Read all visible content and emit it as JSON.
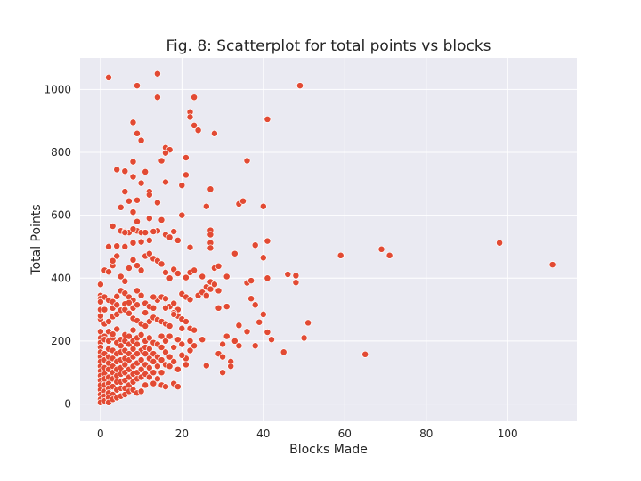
{
  "chart_data": {
    "type": "scatter",
    "title": "Fig. 8: Scatterplot for total points vs blocks",
    "xlabel": "Blocks Made",
    "ylabel": "Total Points",
    "xlim": [
      -5,
      117
    ],
    "ylim": [
      -55,
      1100
    ],
    "xticks": [
      0,
      20,
      40,
      60,
      80,
      100
    ],
    "yticks": [
      0,
      200,
      400,
      600,
      800,
      1000
    ],
    "grid": true,
    "colors": {
      "background": "#EAEAF2",
      "grid": "#FFFFFF",
      "point": "#E24A33",
      "point_edge": "#FFFFFF"
    },
    "points": [
      [
        2,
        1038
      ],
      [
        9,
        1012
      ],
      [
        14,
        1050
      ],
      [
        14,
        975
      ],
      [
        49,
        1012
      ],
      [
        23,
        975
      ],
      [
        22,
        928
      ],
      [
        22,
        912
      ],
      [
        23,
        885
      ],
      [
        24,
        870
      ],
      [
        28,
        860
      ],
      [
        41,
        905
      ],
      [
        8,
        895
      ],
      [
        9,
        860
      ],
      [
        10,
        838
      ],
      [
        16,
        815
      ],
      [
        17,
        808
      ],
      [
        16,
        798
      ],
      [
        15,
        773
      ],
      [
        21,
        783
      ],
      [
        36,
        773
      ],
      [
        4,
        745
      ],
      [
        6,
        740
      ],
      [
        8,
        770
      ],
      [
        11,
        738
      ],
      [
        21,
        728
      ],
      [
        16,
        705
      ],
      [
        20,
        695
      ],
      [
        10,
        702
      ],
      [
        8,
        722
      ],
      [
        6,
        675
      ],
      [
        12,
        675
      ],
      [
        12,
        665
      ],
      [
        27,
        683
      ],
      [
        9,
        648
      ],
      [
        5,
        625
      ],
      [
        7,
        645
      ],
      [
        14,
        640
      ],
      [
        26,
        628
      ],
      [
        34,
        636
      ],
      [
        35,
        645
      ],
      [
        40,
        628
      ],
      [
        8,
        610
      ],
      [
        9,
        580
      ],
      [
        3,
        565
      ],
      [
        5,
        550
      ],
      [
        6,
        548
      ],
      [
        7,
        545
      ],
      [
        9,
        550
      ],
      [
        10,
        545
      ],
      [
        14,
        550
      ],
      [
        16,
        538
      ],
      [
        18,
        548
      ],
      [
        20,
        600
      ],
      [
        15,
        585
      ],
      [
        12,
        590
      ],
      [
        4,
        502
      ],
      [
        2,
        500
      ],
      [
        6,
        500
      ],
      [
        8,
        512
      ],
      [
        10,
        515
      ],
      [
        12,
        520
      ],
      [
        17,
        530
      ],
      [
        19,
        520
      ],
      [
        22,
        498
      ],
      [
        27,
        552
      ],
      [
        27,
        538
      ],
      [
        27,
        512
      ],
      [
        27,
        496
      ],
      [
        38,
        505
      ],
      [
        41,
        518
      ],
      [
        59,
        472
      ],
      [
        69,
        492
      ],
      [
        71,
        472
      ],
      [
        98,
        512
      ],
      [
        111,
        443
      ],
      [
        0,
        380
      ],
      [
        1,
        425
      ],
      [
        2,
        420
      ],
      [
        3,
        440
      ],
      [
        4,
        470
      ],
      [
        3,
        455
      ],
      [
        5,
        405
      ],
      [
        6,
        390
      ],
      [
        7,
        432
      ],
      [
        8,
        458
      ],
      [
        9,
        440
      ],
      [
        10,
        425
      ],
      [
        11,
        470
      ],
      [
        12,
        478
      ],
      [
        13,
        462
      ],
      [
        14,
        455
      ],
      [
        15,
        445
      ],
      [
        16,
        418
      ],
      [
        17,
        400
      ],
      [
        18,
        428
      ],
      [
        19,
        415
      ],
      [
        21,
        402
      ],
      [
        22,
        418
      ],
      [
        23,
        425
      ],
      [
        25,
        405
      ],
      [
        26,
        372
      ],
      [
        27,
        388
      ],
      [
        28,
        432
      ],
      [
        29,
        438
      ],
      [
        31,
        405
      ],
      [
        33,
        478
      ],
      [
        36,
        385
      ],
      [
        37,
        392
      ],
      [
        40,
        465
      ],
      [
        41,
        400
      ],
      [
        46,
        412
      ],
      [
        48,
        408
      ],
      [
        48,
        386
      ],
      [
        0,
        345
      ],
      [
        0,
        335
      ],
      [
        1,
        340
      ],
      [
        2,
        330
      ],
      [
        3,
        325
      ],
      [
        4,
        342
      ],
      [
        5,
        360
      ],
      [
        6,
        352
      ],
      [
        7,
        340
      ],
      [
        8,
        330
      ],
      [
        9,
        360
      ],
      [
        10,
        345
      ],
      [
        11,
        320
      ],
      [
        12,
        310
      ],
      [
        13,
        305
      ],
      [
        14,
        330
      ],
      [
        15,
        340
      ],
      [
        16,
        335
      ],
      [
        17,
        310
      ],
      [
        18,
        320
      ],
      [
        19,
        300
      ],
      [
        20,
        350
      ],
      [
        21,
        340
      ],
      [
        22,
        332
      ],
      [
        24,
        345
      ],
      [
        25,
        355
      ],
      [
        26,
        342
      ],
      [
        27,
        365
      ],
      [
        28,
        380
      ],
      [
        29,
        360
      ],
      [
        31,
        310
      ],
      [
        29,
        305
      ],
      [
        37,
        335
      ],
      [
        38,
        315
      ],
      [
        39,
        260
      ],
      [
        40,
        285
      ],
      [
        41,
        228
      ],
      [
        42,
        205
      ],
      [
        45,
        165
      ],
      [
        50,
        210
      ],
      [
        51,
        258
      ],
      [
        65,
        158
      ],
      [
        0,
        270
      ],
      [
        1,
        255
      ],
      [
        2,
        262
      ],
      [
        3,
        278
      ],
      [
        4,
        285
      ],
      [
        5,
        298
      ],
      [
        6,
        300
      ],
      [
        7,
        288
      ],
      [
        8,
        272
      ],
      [
        9,
        265
      ],
      [
        10,
        255
      ],
      [
        11,
        248
      ],
      [
        12,
        262
      ],
      [
        13,
        275
      ],
      [
        14,
        268
      ],
      [
        15,
        262
      ],
      [
        16,
        255
      ],
      [
        17,
        248
      ],
      [
        18,
        290
      ],
      [
        19,
        280
      ],
      [
        20,
        270
      ],
      [
        21,
        262
      ],
      [
        22,
        240
      ],
      [
        23,
        235
      ],
      [
        25,
        205
      ],
      [
        26,
        122
      ],
      [
        29,
        160
      ],
      [
        30,
        150
      ],
      [
        30,
        100
      ],
      [
        31,
        215
      ],
      [
        32,
        135
      ],
      [
        32,
        120
      ],
      [
        33,
        200
      ],
      [
        34,
        185
      ],
      [
        34,
        250
      ],
      [
        36,
        230
      ],
      [
        38,
        185
      ],
      [
        0,
        230
      ],
      [
        0,
        210
      ],
      [
        0,
        195
      ],
      [
        1,
        215
      ],
      [
        1,
        205
      ],
      [
        2,
        230
      ],
      [
        2,
        200
      ],
      [
        3,
        210
      ],
      [
        3,
        222
      ],
      [
        4,
        238
      ],
      [
        4,
        195
      ],
      [
        5,
        205
      ],
      [
        5,
        185
      ],
      [
        6,
        220
      ],
      [
        6,
        200
      ],
      [
        7,
        190
      ],
      [
        7,
        215
      ],
      [
        8,
        235
      ],
      [
        8,
        200
      ],
      [
        9,
        210
      ],
      [
        9,
        190
      ],
      [
        10,
        220
      ],
      [
        10,
        170
      ],
      [
        11,
        200
      ],
      [
        11,
        180
      ],
      [
        12,
        210
      ],
      [
        12,
        175
      ],
      [
        13,
        195
      ],
      [
        13,
        160
      ],
      [
        14,
        190
      ],
      [
        15,
        215
      ],
      [
        15,
        180
      ],
      [
        16,
        200
      ],
      [
        17,
        215
      ],
      [
        18,
        180
      ],
      [
        19,
        205
      ],
      [
        20,
        190
      ],
      [
        21,
        145
      ],
      [
        22,
        170
      ],
      [
        23,
        185
      ],
      [
        0,
        180
      ],
      [
        0,
        165
      ],
      [
        0,
        150
      ],
      [
        0,
        135
      ],
      [
        0,
        120
      ],
      [
        0,
        105
      ],
      [
        0,
        90
      ],
      [
        0,
        75
      ],
      [
        0,
        60
      ],
      [
        0,
        45
      ],
      [
        0,
        30
      ],
      [
        0,
        15
      ],
      [
        0,
        5
      ],
      [
        1,
        160
      ],
      [
        1,
        140
      ],
      [
        1,
        115
      ],
      [
        1,
        95
      ],
      [
        1,
        80
      ],
      [
        1,
        60
      ],
      [
        1,
        40
      ],
      [
        1,
        25
      ],
      [
        1,
        10
      ],
      [
        2,
        175
      ],
      [
        2,
        150
      ],
      [
        2,
        130
      ],
      [
        2,
        110
      ],
      [
        2,
        85
      ],
      [
        2,
        65
      ],
      [
        2,
        50
      ],
      [
        2,
        35
      ],
      [
        2,
        20
      ],
      [
        2,
        5
      ],
      [
        3,
        170
      ],
      [
        3,
        145
      ],
      [
        3,
        120
      ],
      [
        3,
        100
      ],
      [
        3,
        80
      ],
      [
        3,
        55
      ],
      [
        3,
        30
      ],
      [
        3,
        15
      ],
      [
        4,
        160
      ],
      [
        4,
        135
      ],
      [
        4,
        110
      ],
      [
        4,
        90
      ],
      [
        4,
        70
      ],
      [
        4,
        45
      ],
      [
        4,
        20
      ],
      [
        5,
        165
      ],
      [
        5,
        140
      ],
      [
        5,
        115
      ],
      [
        5,
        95
      ],
      [
        5,
        70
      ],
      [
        5,
        50
      ],
      [
        5,
        25
      ],
      [
        6,
        170
      ],
      [
        6,
        145
      ],
      [
        6,
        125
      ],
      [
        6,
        100
      ],
      [
        6,
        75
      ],
      [
        6,
        50
      ],
      [
        6,
        30
      ],
      [
        7,
        160
      ],
      [
        7,
        140
      ],
      [
        7,
        110
      ],
      [
        7,
        85
      ],
      [
        7,
        60
      ],
      [
        7,
        40
      ],
      [
        8,
        175
      ],
      [
        8,
        150
      ],
      [
        8,
        120
      ],
      [
        8,
        95
      ],
      [
        8,
        70
      ],
      [
        8,
        45
      ],
      [
        9,
        160
      ],
      [
        9,
        130
      ],
      [
        9,
        100
      ],
      [
        9,
        80
      ],
      [
        9,
        35
      ],
      [
        10,
        140
      ],
      [
        10,
        110
      ],
      [
        10,
        85
      ],
      [
        10,
        40
      ],
      [
        11,
        160
      ],
      [
        11,
        125
      ],
      [
        11,
        95
      ],
      [
        11,
        60
      ],
      [
        12,
        145
      ],
      [
        12,
        115
      ],
      [
        12,
        85
      ],
      [
        13,
        135
      ],
      [
        13,
        100
      ],
      [
        13,
        65
      ],
      [
        14,
        150
      ],
      [
        14,
        120
      ],
      [
        14,
        80
      ],
      [
        15,
        140
      ],
      [
        15,
        100
      ],
      [
        15,
        60
      ],
      [
        16,
        165
      ],
      [
        16,
        125
      ],
      [
        16,
        55
      ],
      [
        17,
        150
      ],
      [
        17,
        120
      ],
      [
        18,
        135
      ],
      [
        18,
        65
      ],
      [
        19,
        110
      ],
      [
        19,
        55
      ],
      [
        20,
        155
      ],
      [
        21,
        125
      ],
      [
        0,
        280
      ],
      [
        0,
        300
      ],
      [
        0,
        325
      ],
      [
        1,
        300
      ],
      [
        3,
        305
      ],
      [
        4,
        315
      ],
      [
        6,
        318
      ],
      [
        7,
        322
      ],
      [
        8,
        305
      ],
      [
        9,
        315
      ],
      [
        11,
        290
      ],
      [
        13,
        340
      ],
      [
        16,
        305
      ],
      [
        18,
        285
      ],
      [
        20,
        240
      ],
      [
        22,
        200
      ],
      [
        26,
        345
      ],
      [
        30,
        190
      ],
      [
        6,
        545
      ],
      [
        8,
        556
      ],
      [
        11,
        545
      ],
      [
        13,
        548
      ]
    ]
  }
}
